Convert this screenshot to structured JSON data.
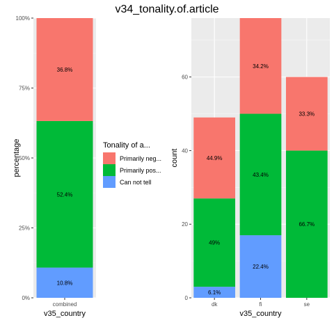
{
  "title": "v34_tonality.of.article",
  "colors": {
    "panel_bg": "#ebebeb",
    "grid_major": "#ffffff",
    "grid_minor": "#f5f5f5",
    "tick_text": "#4d4d4d",
    "axis_title": "#000000"
  },
  "legend": {
    "title": "Tonality of a...",
    "entries": [
      {
        "label": "Primarily neg...",
        "color": "#F8766D"
      },
      {
        "label": "Primarily pos...",
        "color": "#00BA38"
      },
      {
        "label": "Can not tell",
        "color": "#619CFF"
      }
    ]
  },
  "chart_data": [
    {
      "type": "bar",
      "stacked": true,
      "categories": [
        "combined"
      ],
      "xlabel": "v35_country",
      "ylabel": "percentage",
      "ylim": [
        0,
        1
      ],
      "yticks": [
        0,
        0.25,
        0.5,
        0.75,
        1
      ],
      "ytick_labels": [
        "0%",
        "25%",
        "50%",
        "75%",
        "100%"
      ],
      "series": [
        {
          "name": "Can not tell",
          "color": "#619CFF",
          "values": [
            0.108
          ],
          "labels": [
            "10.8%"
          ]
        },
        {
          "name": "Primarily pos...",
          "color": "#00BA38",
          "values": [
            0.524
          ],
          "labels": [
            "52.4%"
          ]
        },
        {
          "name": "Primarily neg...",
          "color": "#F8766D",
          "values": [
            0.368
          ],
          "labels": [
            "36.8%"
          ]
        }
      ]
    },
    {
      "type": "bar",
      "stacked": true,
      "categories": [
        "dk",
        "fi",
        "se"
      ],
      "xlabel": "v35_country",
      "ylabel": "count",
      "ylim": [
        0,
        76
      ],
      "yticks": [
        0,
        20,
        40,
        60
      ],
      "ytick_labels": [
        "0",
        "20",
        "40",
        "60"
      ],
      "series": [
        {
          "name": "Can not tell",
          "color": "#619CFF",
          "values": [
            3,
            17,
            0
          ],
          "labels": [
            "6.1%",
            "22.4%",
            ""
          ]
        },
        {
          "name": "Primarily pos...",
          "color": "#00BA38",
          "values": [
            24,
            33,
            40
          ],
          "labels": [
            "49%",
            "43.4%",
            "66.7%"
          ]
        },
        {
          "name": "Primarily neg...",
          "color": "#F8766D",
          "values": [
            22,
            26,
            20
          ],
          "labels": [
            "44.9%",
            "34.2%",
            "33.3%"
          ]
        }
      ]
    }
  ]
}
